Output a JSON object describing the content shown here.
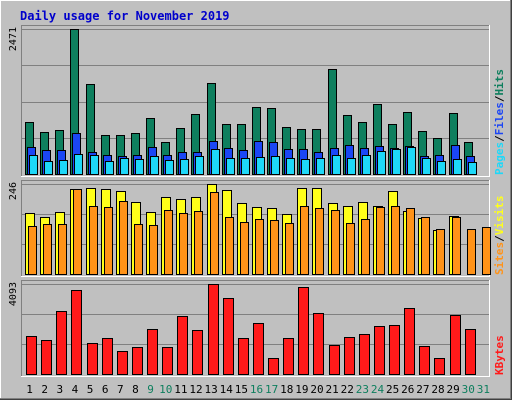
{
  "chart_data": {
    "title": "Daily usage for November 2019",
    "days": [
      "1",
      "2",
      "3",
      "4",
      "5",
      "6",
      "7",
      "8",
      "9",
      "10",
      "11",
      "12",
      "13",
      "14",
      "15",
      "16",
      "17",
      "18",
      "19",
      "20",
      "21",
      "22",
      "23",
      "24",
      "25",
      "26",
      "27",
      "28",
      "29",
      "30",
      "31"
    ],
    "weekend_days": [
      "9",
      "10",
      "16",
      "17",
      "23",
      "24",
      "30",
      "31"
    ],
    "colors": {
      "title": "#0000CC",
      "background": "#C0C0C0",
      "grid": "#808080",
      "hits": "#0E7F5E",
      "files": "#1B46F5",
      "pages": "#1ED8F8",
      "visits": "#FFFF1A",
      "sites": "#FF9319",
      "kbytes": "#FF1A1A",
      "weekday_label": "#000000",
      "weekend_label": "#0E7F5E"
    },
    "panels": [
      {
        "type": "bar",
        "max_label": "2471",
        "ymax": 2471,
        "legend": [
          {
            "label": "Pages",
            "key": "pages"
          },
          {
            "label": "Files",
            "key": "files"
          },
          {
            "label": "Hits",
            "key": "hits"
          }
        ],
        "series": [
          {
            "name": "Hits",
            "key": "hits",
            "values": [
              880,
              710,
              750,
              2471,
              1530,
              660,
              660,
              700,
              960,
              550,
              780,
              1020,
              1550,
              860,
              860,
              1150,
              1130,
              800,
              770,
              770,
              1790,
              1000,
              890,
              1190,
              860,
              1050,
              730,
              610,
              1040,
              550,
              0
            ]
          },
          {
            "name": "Files",
            "key": "files",
            "values": [
              460,
              410,
              410,
              700,
              370,
              320,
              300,
              320,
              460,
              330,
              380,
              380,
              560,
              450,
              410,
              560,
              540,
              430,
              430,
              380,
              440,
              500,
              440,
              470,
              450,
              480,
              310,
              320,
              500,
              310,
              0
            ]
          },
          {
            "name": "Pages",
            "key": "pages",
            "values": [
              320,
              230,
              240,
              340,
              330,
              230,
              270,
              250,
              310,
              240,
              260,
              310,
              430,
              280,
              270,
              290,
              300,
              280,
              260,
              270,
              320,
              280,
              320,
              400,
              430,
              460,
              280,
              220,
              260,
              200,
              0
            ]
          }
        ]
      },
      {
        "type": "bar",
        "max_label": "246",
        "ymax": 246,
        "legend": [
          {
            "label": "Sites",
            "key": "sites"
          },
          {
            "label": "Visits",
            "key": "visits"
          }
        ],
        "series": [
          {
            "name": "Visits",
            "key": "visits",
            "values": [
              168,
              156,
              170,
              232,
              234,
              231,
              228,
              197,
              169,
              210,
              205,
              211,
              246,
              229,
              193,
              184,
              180,
              164,
              236,
              234,
              194,
              187,
              197,
              187,
              226,
              173,
              153,
              121,
              158,
              0,
              0
            ]
          },
          {
            "name": "Sites",
            "key": "sites",
            "values": [
              131,
              138,
              136,
              232,
              187,
              182,
              200,
              138,
              135,
              174,
              168,
              172,
              225,
              156,
              142,
              150,
              147,
              139,
              185,
              180,
              174,
              140,
              149,
              183,
              185,
              180,
              157,
              123,
              155,
              123,
              128
            ]
          }
        ]
      },
      {
        "type": "bar",
        "max_label": "4093",
        "ymax": 4093,
        "legend": [
          {
            "label": "KBytes",
            "key": "kbytes"
          }
        ],
        "series": [
          {
            "name": "KBytes",
            "key": "kbytes",
            "values": [
              1730,
              1540,
              2860,
              3800,
              1390,
              1640,
              1040,
              1220,
              2050,
              1210,
              2620,
              2000,
              4093,
              3470,
              1640,
              2340,
              740,
              1620,
              3940,
              2790,
              1330,
              1660,
              1800,
              2180,
              2240,
              2990,
              1270,
              720,
              2700,
              2030,
              0
            ]
          }
        ]
      }
    ]
  }
}
